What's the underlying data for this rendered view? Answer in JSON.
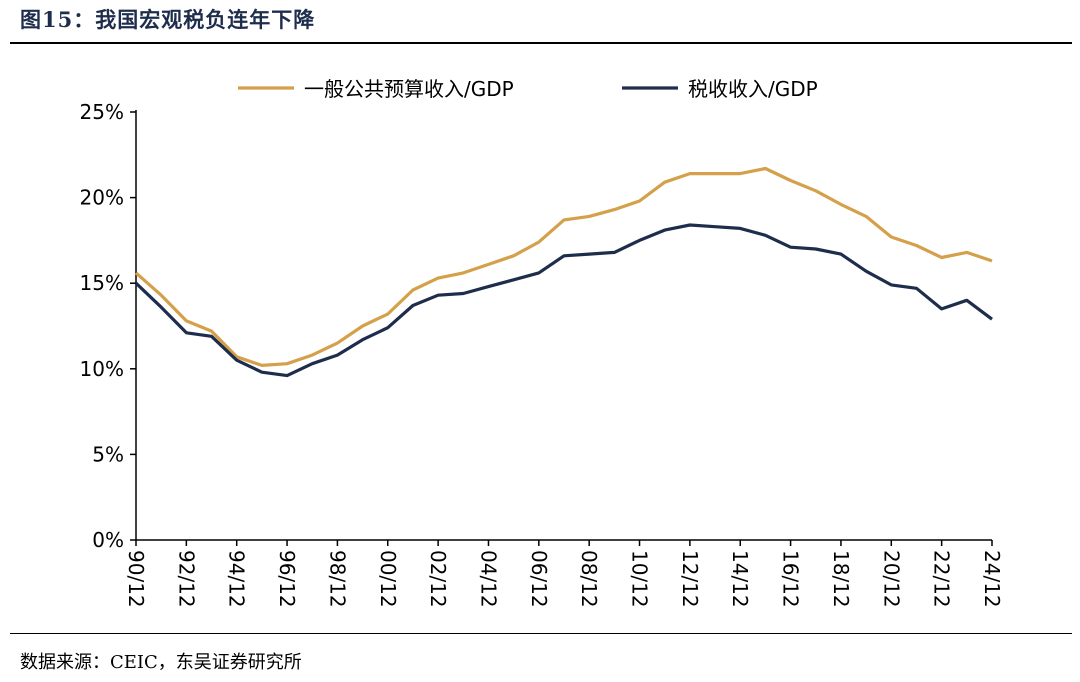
{
  "figure": {
    "title": "图15：我国宏观税负连年下降",
    "source": "数据来源：CEIC，东吴证券研究所"
  },
  "colors": {
    "series_general_budget": "#d4a04a",
    "series_tax": "#1f2d4d",
    "axis": "#000000",
    "title": "#1f2d4d"
  },
  "chart_data": {
    "type": "line",
    "title": "",
    "xlabel": "",
    "ylabel": "",
    "ylim": [
      0,
      25
    ],
    "y_ticks": [
      "0%",
      "5%",
      "10%",
      "15%",
      "20%",
      "25%"
    ],
    "y_tick_values": [
      0,
      5,
      10,
      15,
      20,
      25
    ],
    "x": [
      "90/12",
      "91/12",
      "92/12",
      "93/12",
      "94/12",
      "95/12",
      "96/12",
      "97/12",
      "98/12",
      "99/12",
      "00/12",
      "01/12",
      "02/12",
      "03/12",
      "04/12",
      "05/12",
      "06/12",
      "07/12",
      "08/12",
      "09/12",
      "10/12",
      "11/12",
      "12/12",
      "13/12",
      "14/12",
      "15/12",
      "16/12",
      "17/12",
      "18/12",
      "19/12",
      "20/12",
      "21/12",
      "22/12",
      "23/12",
      "24/12"
    ],
    "x_tick_labels": [
      "90/12",
      "92/12",
      "94/12",
      "96/12",
      "98/12",
      "00/12",
      "02/12",
      "04/12",
      "06/12",
      "08/12",
      "10/12",
      "12/12",
      "14/12",
      "16/12",
      "18/12",
      "20/12",
      "22/12",
      "24/12"
    ],
    "grid": false,
    "legend_position": "top",
    "series": [
      {
        "name": "一般公共预算收入/GDP",
        "values": [
          15.6,
          14.3,
          12.8,
          12.2,
          10.7,
          10.2,
          10.3,
          10.8,
          11.5,
          12.5,
          13.2,
          14.6,
          15.3,
          15.6,
          16.1,
          16.6,
          17.4,
          18.7,
          18.9,
          19.3,
          19.8,
          20.9,
          21.4,
          21.4,
          21.4,
          21.7,
          21.0,
          20.4,
          19.6,
          18.9,
          17.7,
          17.2,
          16.5,
          16.8,
          16.3
        ]
      },
      {
        "name": "税收收入/GDP",
        "values": [
          15.0,
          13.6,
          12.1,
          11.9,
          10.5,
          9.8,
          9.6,
          10.3,
          10.8,
          11.7,
          12.4,
          13.7,
          14.3,
          14.4,
          14.8,
          15.2,
          15.6,
          16.6,
          16.7,
          16.8,
          17.5,
          18.1,
          18.4,
          18.3,
          18.2,
          17.8,
          17.1,
          17.0,
          16.7,
          15.7,
          14.9,
          14.7,
          13.5,
          14.0,
          12.9
        ]
      }
    ]
  }
}
